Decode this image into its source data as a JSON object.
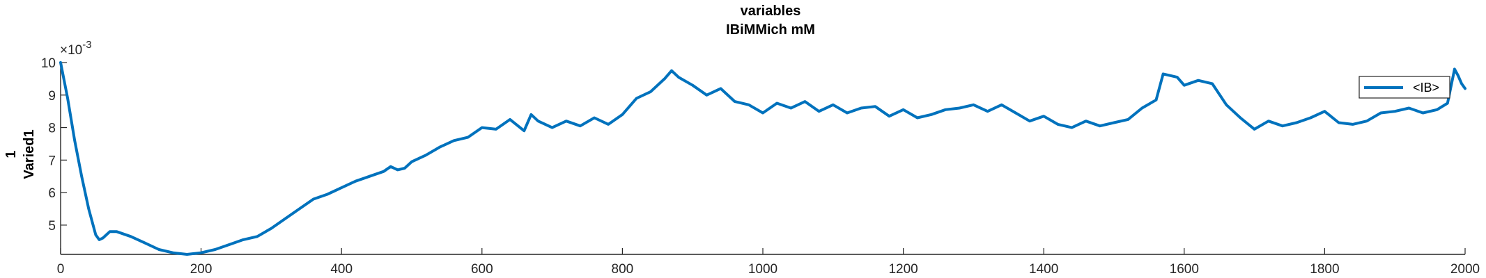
{
  "chart_data": {
    "type": "line",
    "title": [
      "variables",
      "IBiMMich mM"
    ],
    "xlabel": "",
    "ylabel": [
      "Varied1",
      "1"
    ],
    "y_exponent": "×10",
    "y_exponent_power": "-3",
    "xlim": [
      0,
      2000
    ],
    "ylim": [
      4.1,
      10.0
    ],
    "xticks": [
      0,
      200,
      400,
      600,
      800,
      1000,
      1200,
      1400,
      1600,
      1800,
      2000
    ],
    "yticks": [
      5,
      6,
      7,
      8,
      9,
      10
    ],
    "grid": false,
    "legend_position": "top-right",
    "line_color": "#0072BD",
    "series": [
      {
        "name": "<IB>",
        "x": [
          0,
          10,
          20,
          30,
          40,
          50,
          55,
          60,
          70,
          80,
          100,
          120,
          140,
          160,
          180,
          200,
          220,
          240,
          260,
          280,
          300,
          320,
          340,
          360,
          380,
          400,
          420,
          440,
          460,
          470,
          480,
          490,
          500,
          520,
          540,
          560,
          580,
          600,
          620,
          640,
          660,
          670,
          680,
          700,
          720,
          740,
          760,
          780,
          800,
          820,
          840,
          860,
          870,
          880,
          900,
          920,
          940,
          960,
          980,
          1000,
          1020,
          1040,
          1060,
          1080,
          1100,
          1120,
          1140,
          1160,
          1180,
          1200,
          1220,
          1240,
          1260,
          1280,
          1300,
          1320,
          1340,
          1360,
          1380,
          1400,
          1420,
          1440,
          1460,
          1480,
          1500,
          1520,
          1540,
          1560,
          1570,
          1580,
          1590,
          1600,
          1620,
          1640,
          1660,
          1680,
          1700,
          1720,
          1740,
          1760,
          1780,
          1800,
          1820,
          1840,
          1860,
          1880,
          1900,
          1920,
          1940,
          1960,
          1975,
          1985,
          1990,
          1995,
          2000
        ],
        "values": [
          10.0,
          8.9,
          7.6,
          6.5,
          5.5,
          4.7,
          4.55,
          4.6,
          4.8,
          4.8,
          4.65,
          4.45,
          4.25,
          4.15,
          4.1,
          4.15,
          4.25,
          4.4,
          4.55,
          4.65,
          4.9,
          5.2,
          5.5,
          5.8,
          5.95,
          6.15,
          6.35,
          6.5,
          6.65,
          6.8,
          6.7,
          6.75,
          6.95,
          7.15,
          7.4,
          7.6,
          7.7,
          8.0,
          7.95,
          8.25,
          7.9,
          8.4,
          8.2,
          8.0,
          8.2,
          8.05,
          8.3,
          8.1,
          8.4,
          8.9,
          9.1,
          9.5,
          9.75,
          9.55,
          9.3,
          9.0,
          9.2,
          8.8,
          8.7,
          8.45,
          8.75,
          8.6,
          8.8,
          8.5,
          8.7,
          8.45,
          8.6,
          8.65,
          8.35,
          8.55,
          8.3,
          8.4,
          8.55,
          8.6,
          8.7,
          8.5,
          8.7,
          8.45,
          8.2,
          8.35,
          8.1,
          8.0,
          8.2,
          8.05,
          8.15,
          8.25,
          8.6,
          8.85,
          9.65,
          9.6,
          9.55,
          9.3,
          9.45,
          9.35,
          8.7,
          8.3,
          7.95,
          8.2,
          8.05,
          8.15,
          8.3,
          8.5,
          8.15,
          8.1,
          8.2,
          8.45,
          8.5,
          8.6,
          8.45,
          8.55,
          8.75,
          9.8,
          9.6,
          9.35,
          9.2
        ]
      }
    ]
  }
}
